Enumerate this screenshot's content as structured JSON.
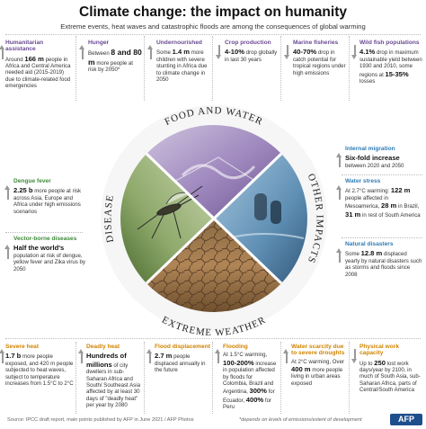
{
  "header": {
    "title": "Climate change: the impact on humanity",
    "subtitle": "Extreme events, heat waves and catastrophic floods are among the consequences of global warming"
  },
  "wheel": {
    "segments": [
      {
        "label": "FOOD AND WATER",
        "color": "#6b4a93"
      },
      {
        "label": "OTHER IMPACTS",
        "color": "#2f7cb5"
      },
      {
        "label": "EXTREME WEATHER",
        "color": "#d08400"
      },
      {
        "label": "DISEASE",
        "color": "#3f8c3a"
      }
    ]
  },
  "top_cards": [
    {
      "title": "Humanitarian assistance",
      "pre": "Around ",
      "highlight": "166 m",
      "post": " people in Africa and Central America needed aid (2015-2019) due to climate-related food emergencies",
      "direction": "up"
    },
    {
      "title": "Hunger",
      "pre": "Between ",
      "highlight": "8 and 80 m",
      "post": " more people at risk by 2050*",
      "direction": "up"
    },
    {
      "title": "Undernourished",
      "pre": "Some ",
      "highlight": "1.4 m",
      "post": " more children with severe stunting in Africa due to climate change in 2050",
      "direction": "up"
    },
    {
      "title": "Crop production",
      "pre": "",
      "highlight": "4-10%",
      "post": " drop globally in last 30 years",
      "direction": "down"
    },
    {
      "title": "Marine fisheries",
      "pre": "",
      "highlight": "40-70%",
      "post": " drop in catch potential for tropical regions under high emissions",
      "direction": "down"
    },
    {
      "title": "Wild fish populations",
      "pre": "",
      "highlight": "4.1%",
      "post": " drop in maximum sustainable yield between 1930 and 2010, some regions at ",
      "highlight2": "15-35%",
      "post2": " losses",
      "direction": "down"
    }
  ],
  "left_cards": [
    {
      "title": "Dengue fever",
      "highlight": "2.25 b",
      "post": " more people at risk across Asia, Europe and Africa under high emissions scenarios",
      "direction": "up"
    },
    {
      "title": "Vector-borne diseases",
      "highlight": "Half the world's",
      "post": " population at risk of dengue, yellow fever and Zika virus by 2050",
      "direction": "up"
    }
  ],
  "right_cards": [
    {
      "title": "Internal migration",
      "highlight": "Six-fold increase",
      "post": " between 2020 and 2050",
      "direction": "up"
    },
    {
      "title": "Water stress",
      "pre": "At 2.7°C warming: ",
      "highlight": "122 m",
      "mid": " people affected in Mesoamerica, ",
      "highlight2": "28 m",
      "mid2": " in Brazil, ",
      "highlight3": "31 m",
      "post": " in rest of South America",
      "direction": "up"
    },
    {
      "title": "Natural disasters",
      "pre": "Some ",
      "highlight": "12.8 m",
      "post": " displaced yearly by natural disasters such as storms and floods since 2008",
      "direction": "up"
    }
  ],
  "bottom_cards": [
    {
      "title": "Severe heat",
      "highlight": "1.7 b",
      "post": " more people exposed, and 420 m people subjected to heat waves, subject to temperature increases from 1.5°C to 2°C",
      "direction": "up"
    },
    {
      "title": "Deadly heat",
      "highlight": "Hundreds of millions",
      "post": " of city dwellers in sub-Saharan Africa and South/ Southeast Asia affected by at least 30 days of \"deadly heat\" per year by 2080",
      "direction": "up"
    },
    {
      "title": "Flood displacement",
      "highlight": "2.7 m",
      "post": " people displaced annually in the future",
      "direction": "up"
    },
    {
      "title": "Flooding",
      "pre": "At 1.5°C warming, ",
      "highlight": "100-200%",
      "mid": " increase in population affected by floods for Colombia, Brazil and Argentina, ",
      "highlight2": "300%",
      "mid2": " for Ecuador, ",
      "highlight3": "400%",
      "post": " for Peru",
      "direction": "up"
    },
    {
      "title": "Water scarcity due to severe droughts",
      "pre": "At 2°C warming, Over ",
      "highlight": "400 m",
      "post": " more people living in urban areas exposed",
      "direction": "up"
    },
    {
      "title": "Physical work capacity",
      "pre": "Up to ",
      "highlight": "250",
      "post": " lost work days/year by 2100, in much of South Asia, sub-Saharan Africa, parts of Central/South America",
      "direction": "down"
    }
  ],
  "footer": {
    "source": "Source: IPCC draft report, main points published by AFP in June 2021 / AFP Photos",
    "note": "*depends on levels of emissions/extent of development",
    "logo": "AFP"
  }
}
